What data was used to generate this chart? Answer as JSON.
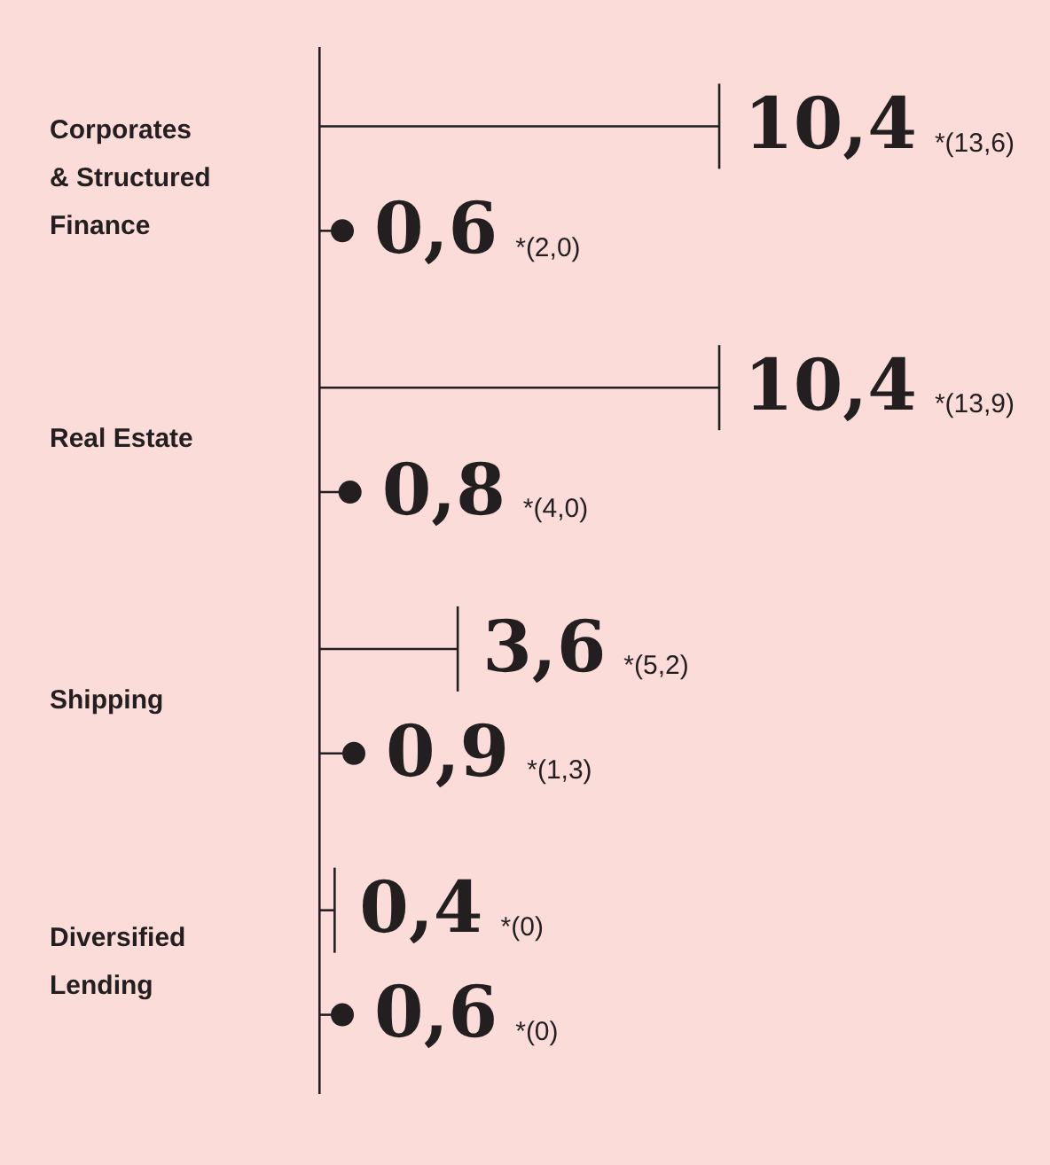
{
  "chart_data": {
    "type": "bar",
    "orientation": "horizontal",
    "categories": [
      "Corporates & Structured Finance",
      "Real Estate",
      "Shipping",
      "Diversified Lending"
    ],
    "series": [
      {
        "type": "bar",
        "color": "#231f20",
        "values": [
          10.4,
          10.4,
          3.6,
          0.4
        ],
        "value_labels": [
          "10,4",
          "10,4",
          "3,6",
          "0,4"
        ]
      },
      {
        "type": "lollipop",
        "marker": "circle",
        "color": "#231f20",
        "values": [
          0.6,
          0.8,
          0.9,
          0.6
        ],
        "value_labels": [
          "0,6",
          "0,8",
          "0,9",
          "0,6"
        ]
      }
    ],
    "xlim": [
      0,
      19
    ],
    "tick_labels": "y",
    "annotations": [
      "*(13,6)",
      "*(2,0)",
      "*(13,9)",
      "*(4,0)",
      "*(5,2)",
      "*(1,3)",
      "*(0)",
      "*(0)"
    ]
  }
}
